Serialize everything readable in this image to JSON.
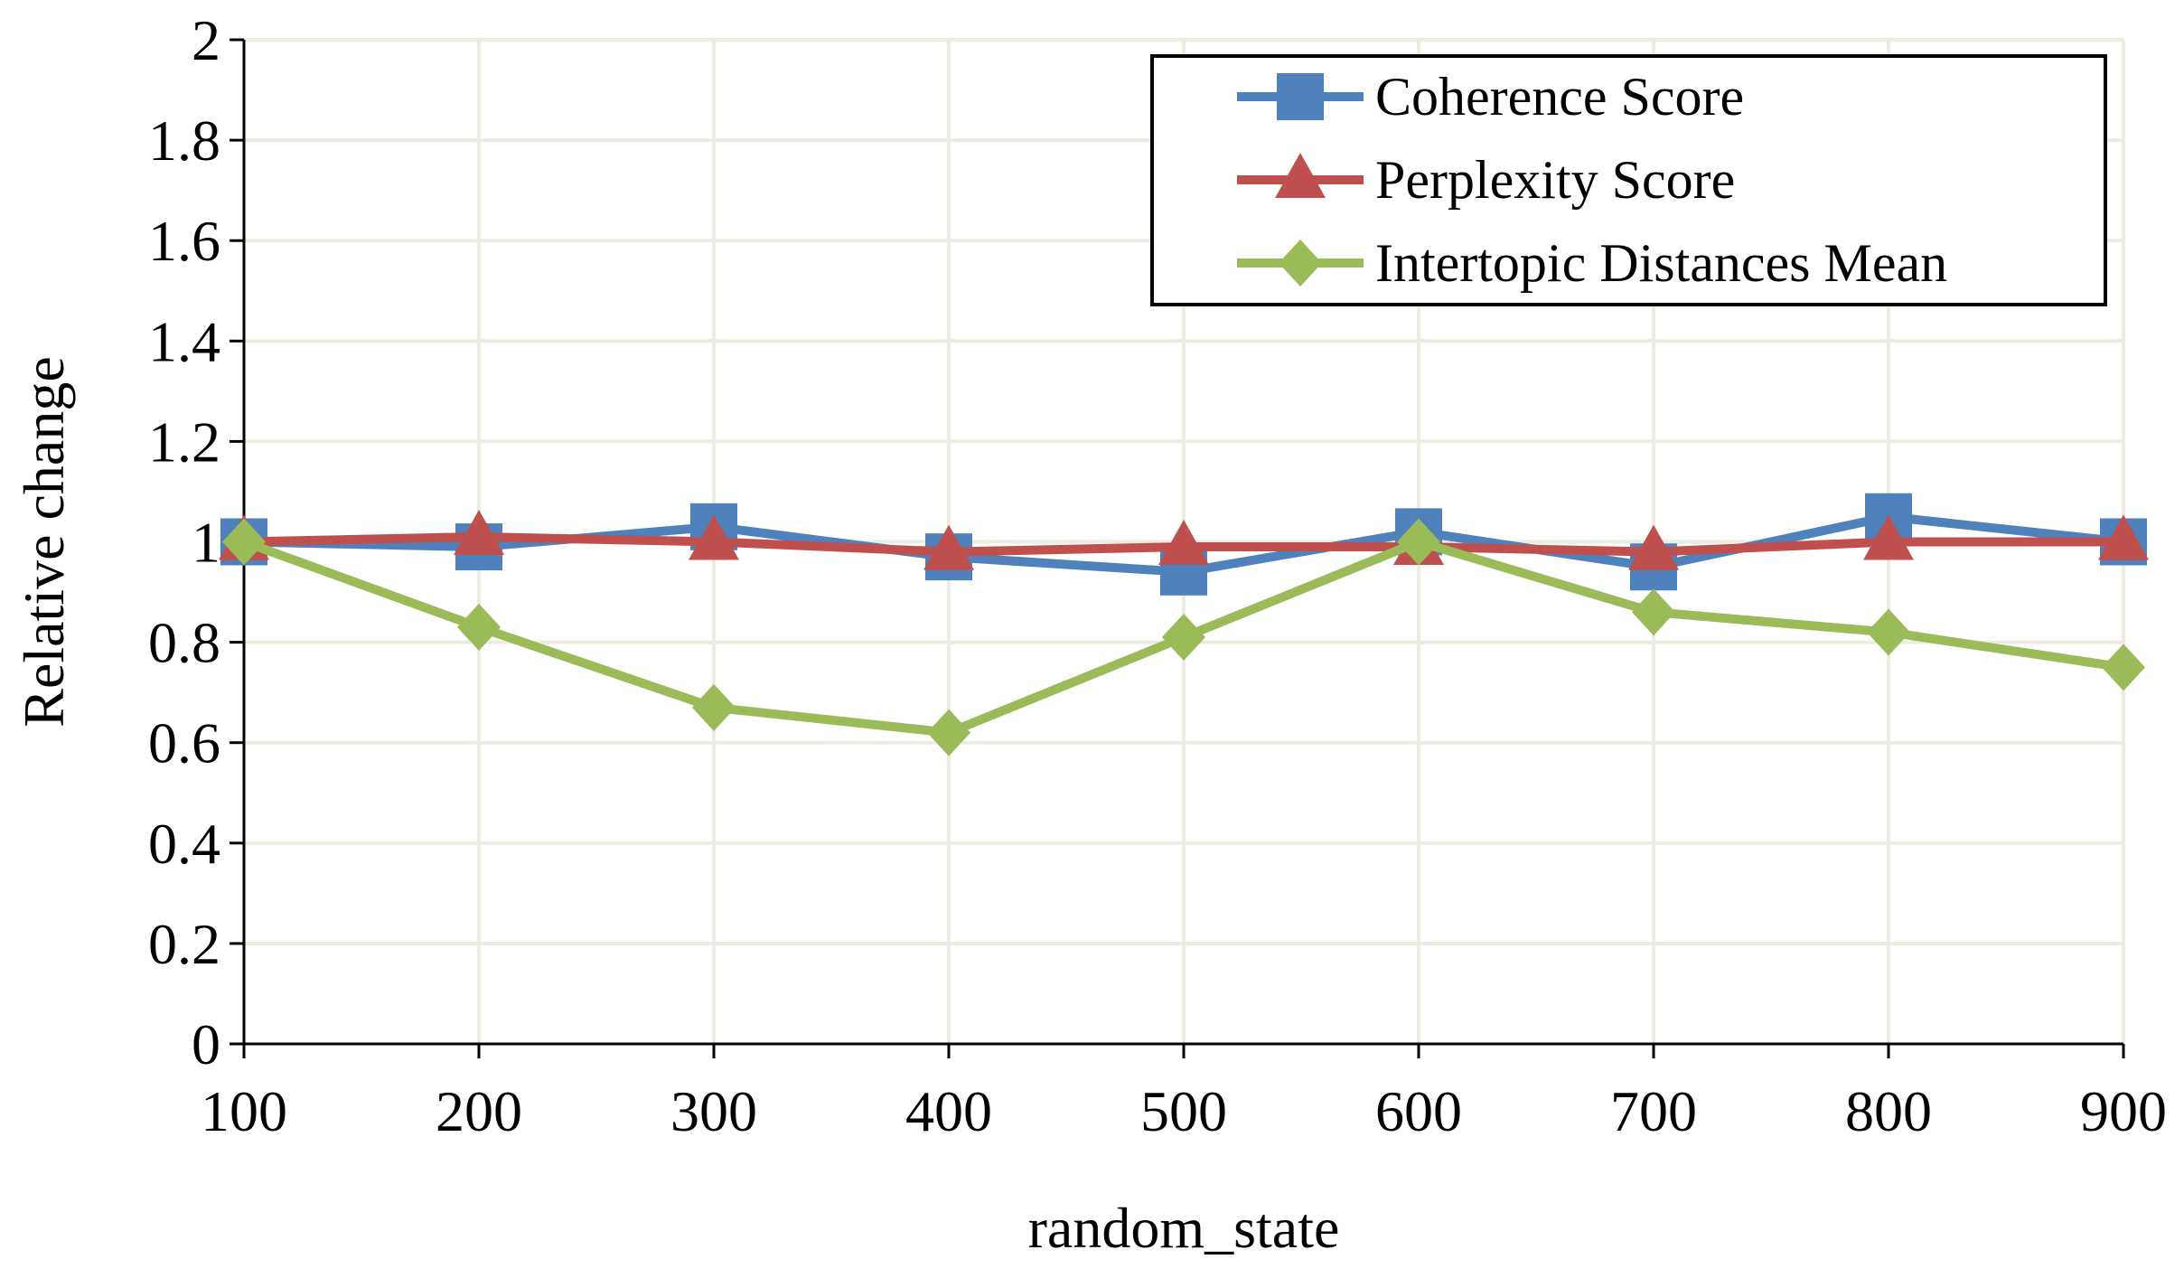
{
  "chart_data": {
    "type": "line",
    "title": "",
    "xlabel": "random_state",
    "ylabel": "Relative change",
    "x": [
      100,
      200,
      300,
      400,
      500,
      600,
      700,
      800,
      900
    ],
    "xlim": [
      100,
      900
    ],
    "ylim": [
      0,
      2
    ],
    "y_ticks": [
      0,
      0.2,
      0.4,
      0.6,
      0.8,
      1,
      1.2,
      1.4,
      1.6,
      1.8,
      2
    ],
    "y_tick_labels": [
      "0",
      "0.2",
      "0.4",
      "0.6",
      "0.8",
      "1",
      "1.2",
      "1.4",
      "1.6",
      "1.8",
      "2"
    ],
    "x_tick_labels": [
      "100",
      "200",
      "300",
      "400",
      "500",
      "600",
      "700",
      "800",
      "900"
    ],
    "grid": true,
    "legend_position": "top-right",
    "series": [
      {
        "name": "Coherence Score",
        "color": "#4F81BD",
        "marker": "square",
        "values": [
          1.0,
          0.99,
          1.03,
          0.97,
          0.94,
          1.02,
          0.95,
          1.05,
          1.0
        ]
      },
      {
        "name": "Perplexity Score",
        "color": "#C0504D",
        "marker": "triangle",
        "values": [
          1.0,
          1.01,
          1.0,
          0.98,
          0.99,
          0.99,
          0.98,
          1.0,
          1.0
        ]
      },
      {
        "name": "Intertopic Distances Mean",
        "color": "#9BBB59",
        "marker": "diamond",
        "values": [
          1.0,
          0.83,
          0.67,
          0.62,
          0.81,
          1.0,
          0.86,
          0.82,
          0.75
        ]
      }
    ]
  }
}
